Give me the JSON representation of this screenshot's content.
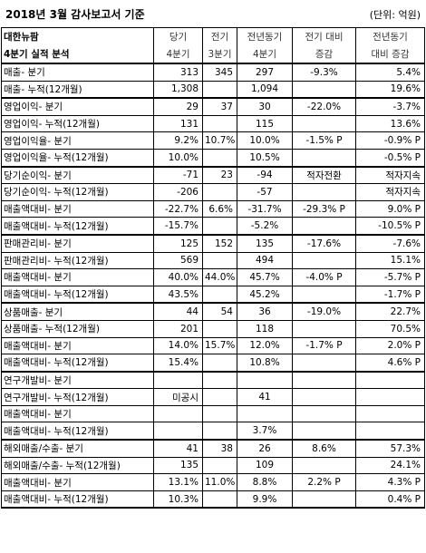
{
  "header": {
    "title": "2018년 3월 감사보고서 기준",
    "unit": "(단위: 억원)"
  },
  "table": {
    "company": "대한뉴팜",
    "subtitle": "4분기 실적 분석",
    "columns": [
      {
        "line1": "당기",
        "line2": "4분기"
      },
      {
        "line1": "전기",
        "line2": "3분기"
      },
      {
        "line1": "전년동기",
        "line2": "4분기"
      },
      {
        "line1": "전기 대비",
        "line2": "증감"
      },
      {
        "line1": "전년동기",
        "line2": "대비 증감"
      }
    ],
    "groups": [
      {
        "rows": [
          {
            "label": "매출- 분기",
            "cur": "313",
            "prev": "345",
            "yoy": "297",
            "qoq_chg": "-9.3%",
            "yoy_chg": "5.4%"
          },
          {
            "label": "매출- 누적(12개월)",
            "cur": "1,308",
            "prev": "",
            "yoy": "1,094",
            "qoq_chg": "",
            "yoy_chg": "19.6%"
          }
        ]
      },
      {
        "rows": [
          {
            "label": "영업이익- 분기",
            "cur": "29",
            "prev": "37",
            "yoy": "30",
            "qoq_chg": "-22.0%",
            "yoy_chg": "-3.7%"
          },
          {
            "label": "영업이익- 누적(12개월)",
            "cur": "131",
            "prev": "",
            "yoy": "115",
            "qoq_chg": "",
            "yoy_chg": "13.6%"
          },
          {
            "label": "영업이익율- 분기",
            "cur": "9.2%",
            "prev": "10.7%",
            "yoy": "10.0%",
            "qoq_chg": "-1.5% P",
            "yoy_chg": "-0.9% P"
          },
          {
            "label": "영업이익율- 누적(12개월)",
            "cur": "10.0%",
            "prev": "",
            "yoy": "10.5%",
            "qoq_chg": "",
            "yoy_chg": "-0.5% P"
          }
        ]
      },
      {
        "rows": [
          {
            "label": "당기순이익- 분기",
            "cur": "-71",
            "prev": "23",
            "yoy": "-94",
            "qoq_chg": "적자전환",
            "yoy_chg": "적자지속"
          },
          {
            "label": "당기순이익- 누적(12개월)",
            "cur": "-206",
            "prev": "",
            "yoy": "-57",
            "qoq_chg": "",
            "yoy_chg": "적자지속"
          },
          {
            "label": "매출액대비- 분기",
            "cur": "-22.7%",
            "prev": "6.6%",
            "yoy": "-31.7%",
            "qoq_chg": "-29.3% P",
            "yoy_chg": "9.0% P"
          },
          {
            "label": "매출액대비- 누적(12개월)",
            "cur": "-15.7%",
            "prev": "",
            "yoy": "-5.2%",
            "qoq_chg": "",
            "yoy_chg": "-10.5% P"
          }
        ]
      },
      {
        "rows": [
          {
            "label": "판매관리비- 분기",
            "cur": "125",
            "prev": "152",
            "yoy": "135",
            "qoq_chg": "-17.6%",
            "yoy_chg": "-7.6%"
          },
          {
            "label": "판매관리비- 누적(12개월)",
            "cur": "569",
            "prev": "",
            "yoy": "494",
            "qoq_chg": "",
            "yoy_chg": "15.1%"
          },
          {
            "label": "매출액대비- 분기",
            "cur": "40.0%",
            "prev": "44.0%",
            "yoy": "45.7%",
            "qoq_chg": "-4.0% P",
            "yoy_chg": "-5.7% P"
          },
          {
            "label": "매출액대비- 누적(12개월)",
            "cur": "43.5%",
            "prev": "",
            "yoy": "45.2%",
            "qoq_chg": "",
            "yoy_chg": "-1.7% P"
          }
        ]
      },
      {
        "rows": [
          {
            "label": "상품매출- 분기",
            "cur": "44",
            "prev": "54",
            "yoy": "36",
            "qoq_chg": "-19.0%",
            "yoy_chg": "22.7%"
          },
          {
            "label": "상품매출- 누적(12개월)",
            "cur": "201",
            "prev": "",
            "yoy": "118",
            "qoq_chg": "",
            "yoy_chg": "70.5%"
          },
          {
            "label": "매출액대비- 분기",
            "cur": "14.0%",
            "prev": "15.7%",
            "yoy": "12.0%",
            "qoq_chg": "-1.7% P",
            "yoy_chg": "2.0% P"
          },
          {
            "label": "매출액대비- 누적(12개월)",
            "cur": "15.4%",
            "prev": "",
            "yoy": "10.8%",
            "qoq_chg": "",
            "yoy_chg": "4.6% P"
          }
        ]
      },
      {
        "rows": [
          {
            "label": "연구개발비- 분기",
            "cur": "",
            "prev": "",
            "yoy": "",
            "qoq_chg": "",
            "yoy_chg": ""
          },
          {
            "label": "연구개발비- 누적(12개월)",
            "cur": "미공시",
            "prev": "",
            "yoy": "41",
            "qoq_chg": "",
            "yoy_chg": ""
          },
          {
            "label": "매출액대비- 분기",
            "cur": "",
            "prev": "",
            "yoy": "",
            "qoq_chg": "",
            "yoy_chg": ""
          },
          {
            "label": "매출액대비- 누적(12개월)",
            "cur": "",
            "prev": "",
            "yoy": "3.7%",
            "qoq_chg": "",
            "yoy_chg": ""
          }
        ]
      },
      {
        "rows": [
          {
            "label": "해외매출/수출- 분기",
            "cur": "41",
            "prev": "38",
            "yoy": "26",
            "qoq_chg": "8.6%",
            "yoy_chg": "57.3%"
          },
          {
            "label": "해외매출/수출- 누적(12개월)",
            "cur": "135",
            "prev": "",
            "yoy": "109",
            "qoq_chg": "",
            "yoy_chg": "24.1%"
          },
          {
            "label": "매출액대비- 분기",
            "cur": "13.1%",
            "prev": "11.0%",
            "yoy": "8.8%",
            "qoq_chg": "2.2% P",
            "yoy_chg": "4.3% P"
          },
          {
            "label": "매출액대비- 누적(12개월)",
            "cur": "10.3%",
            "prev": "",
            "yoy": "9.9%",
            "qoq_chg": "",
            "yoy_chg": "0.4% P"
          }
        ]
      }
    ]
  }
}
